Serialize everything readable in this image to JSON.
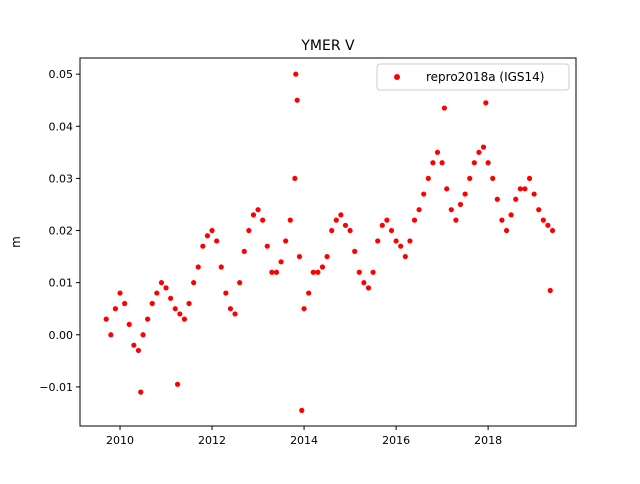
{
  "chart_data": {
    "type": "scatter",
    "title": "YMER V",
    "xlabel": "",
    "ylabel": "m",
    "xlim": [
      2009.13,
      2019.91
    ],
    "ylim": [
      -0.0175,
      0.0531
    ],
    "xticks": [
      2010,
      2012,
      2014,
      2016,
      2018
    ],
    "xtick_labels": [
      "2010",
      "2012",
      "2014",
      "2016",
      "2018"
    ],
    "yticks": [
      -0.01,
      0.0,
      0.01,
      0.02,
      0.03,
      0.04,
      0.05
    ],
    "ytick_labels": [
      "−0.01",
      "0.00",
      "0.01",
      "0.02",
      "0.03",
      "0.04",
      "0.05"
    ],
    "grid": false,
    "legend": {
      "placement": "top-right",
      "entries": [
        "repro2018a (IGS14)"
      ]
    },
    "series": [
      {
        "name": "repro2018a (IGS14)",
        "color": "#ff0000",
        "marker": "circle",
        "x": [
          2009.7,
          2009.8,
          2009.9,
          2010.0,
          2010.1,
          2010.2,
          2010.3,
          2010.4,
          2010.5,
          2010.6,
          2010.7,
          2010.8,
          2010.9,
          2011.0,
          2011.1,
          2011.2,
          2011.3,
          2011.4,
          2011.5,
          2011.6,
          2011.7,
          2011.8,
          2011.9,
          2012.0,
          2012.1,
          2012.2,
          2012.3,
          2012.4,
          2012.5,
          2012.6,
          2012.7,
          2012.8,
          2012.9,
          2013.0,
          2013.1,
          2013.2,
          2013.3,
          2013.4,
          2013.5,
          2013.6,
          2013.7,
          2013.8,
          2013.85,
          2013.9,
          2013.95,
          2014.0,
          2014.1,
          2014.2,
          2014.3,
          2014.4,
          2014.5,
          2014.6,
          2014.7,
          2014.8,
          2014.9,
          2015.0,
          2015.1,
          2015.2,
          2015.3,
          2015.4,
          2015.5,
          2015.6,
          2015.7,
          2015.8,
          2015.9,
          2016.0,
          2016.1,
          2016.2,
          2016.3,
          2016.4,
          2016.5,
          2016.6,
          2016.7,
          2016.8,
          2016.9,
          2017.0,
          2017.1,
          2017.2,
          2017.3,
          2017.4,
          2017.5,
          2017.6,
          2017.7,
          2017.8,
          2017.9,
          2018.0,
          2018.1,
          2018.2,
          2018.3,
          2018.4,
          2018.5,
          2018.6,
          2018.7,
          2018.8,
          2018.9,
          2019.0,
          2019.1,
          2019.2,
          2019.3,
          2019.4,
          2013.82,
          2017.05,
          2017.95,
          2010.45,
          2011.25,
          2019.35
        ],
        "y": [
          0.003,
          0.0,
          0.005,
          0.008,
          0.006,
          0.002,
          -0.002,
          -0.003,
          0.0,
          0.003,
          0.006,
          0.008,
          0.01,
          0.009,
          0.007,
          0.005,
          0.004,
          0.003,
          0.006,
          0.01,
          0.013,
          0.017,
          0.019,
          0.02,
          0.018,
          0.013,
          0.008,
          0.005,
          0.004,
          0.01,
          0.016,
          0.02,
          0.023,
          0.024,
          0.022,
          0.017,
          0.012,
          0.012,
          0.014,
          0.018,
          0.022,
          0.03,
          0.045,
          0.015,
          -0.0145,
          0.005,
          0.008,
          0.012,
          0.012,
          0.013,
          0.015,
          0.02,
          0.022,
          0.023,
          0.021,
          0.02,
          0.016,
          0.012,
          0.01,
          0.009,
          0.012,
          0.018,
          0.021,
          0.022,
          0.02,
          0.018,
          0.017,
          0.015,
          0.018,
          0.022,
          0.024,
          0.027,
          0.03,
          0.033,
          0.035,
          0.033,
          0.028,
          0.024,
          0.022,
          0.025,
          0.027,
          0.03,
          0.033,
          0.035,
          0.036,
          0.033,
          0.03,
          0.026,
          0.022,
          0.02,
          0.023,
          0.026,
          0.028,
          0.028,
          0.03,
          0.027,
          0.024,
          0.022,
          0.021,
          0.02,
          0.05,
          0.0435,
          0.0445,
          -0.011,
          -0.0095,
          0.0085
        ]
      }
    ]
  }
}
